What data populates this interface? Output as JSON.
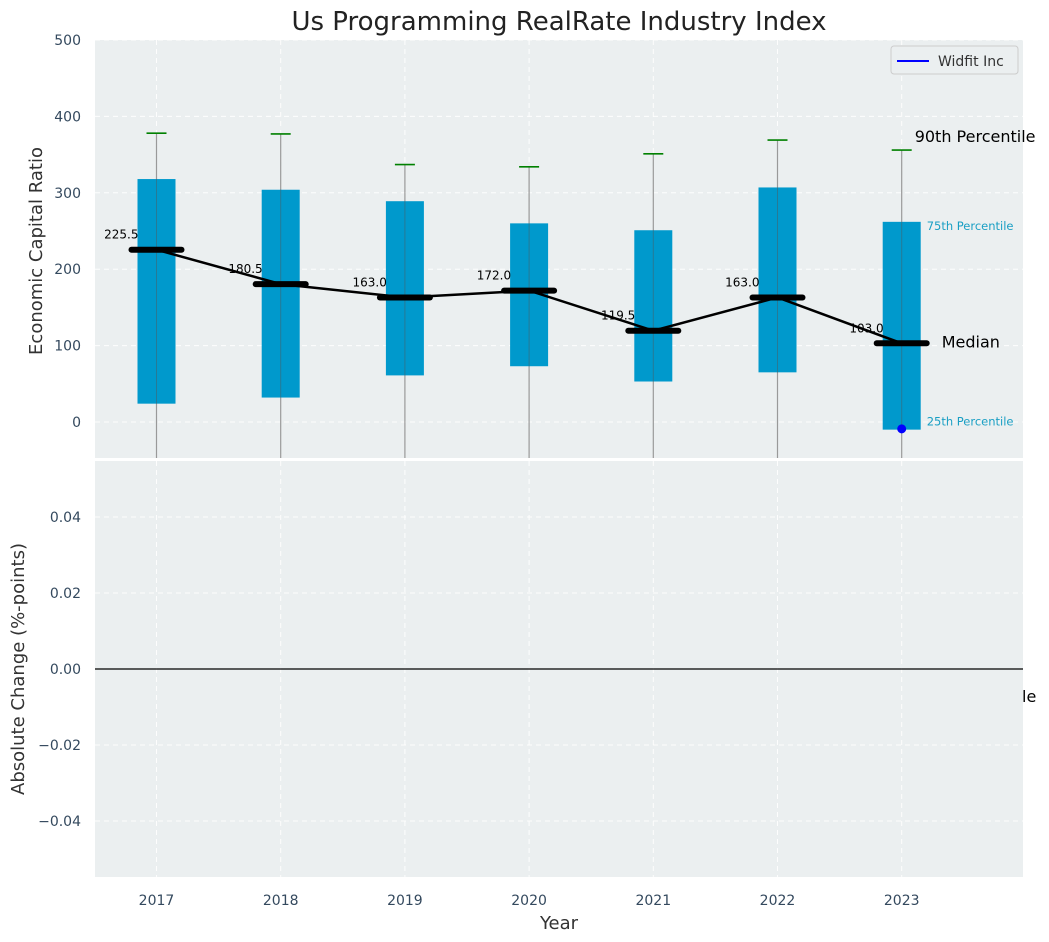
{
  "colors": {
    "panel_bg": "#ebeff0",
    "box_fill": "#0099cc",
    "whisker": "#999999",
    "cap": "#008000",
    "median": "#000000",
    "company_point": "#0000ff",
    "pct_text": "#1a9fc4"
  },
  "chart_data": {
    "type": "box",
    "title": "Us Programming RealRate Industry Index",
    "xlabel": "Year",
    "categories": [
      "2017",
      "2018",
      "2019",
      "2020",
      "2021",
      "2022",
      "2023"
    ],
    "top_panel": {
      "ylabel": "Economic Capital Ratio",
      "ylim": [
        -48,
        500
      ],
      "yticks": [
        0,
        100,
        200,
        300,
        400,
        500
      ],
      "grid": true,
      "p25": [
        24,
        32,
        61,
        73,
        53,
        65,
        -10
      ],
      "p75": [
        318,
        304,
        289,
        260,
        251,
        307,
        262
      ],
      "p90": [
        378,
        377,
        337,
        334,
        351,
        369,
        356
      ],
      "median": [
        225.5,
        180.5,
        163.0,
        172.0,
        119.5,
        163.0,
        103.0
      ],
      "median_labels": [
        "225.5",
        "180.5",
        "163.0",
        "172.0",
        "119.5",
        "163.0",
        "103.0"
      ],
      "company": {
        "name": "Widfit Inc",
        "values": [
          null,
          null,
          null,
          null,
          null,
          null,
          -9
        ]
      },
      "annotations": {
        "p90": "90th Percentile",
        "p75": "75th Percentile",
        "median": "Median",
        "p25": "25th Percentile"
      },
      "legend_position": "top-right"
    },
    "bottom_panel": {
      "ylabel": "Absolute Change (%-points)",
      "ylim": [
        -0.055,
        0.055
      ],
      "yticks": [
        -0.04,
        -0.02,
        0.0,
        0.02,
        0.04
      ],
      "ytick_labels": [
        "−0.04",
        "−0.02",
        "0.00",
        "0.02",
        "0.04"
      ],
      "grid": true,
      "zero_line": true,
      "clipped_annotation": "le"
    }
  }
}
